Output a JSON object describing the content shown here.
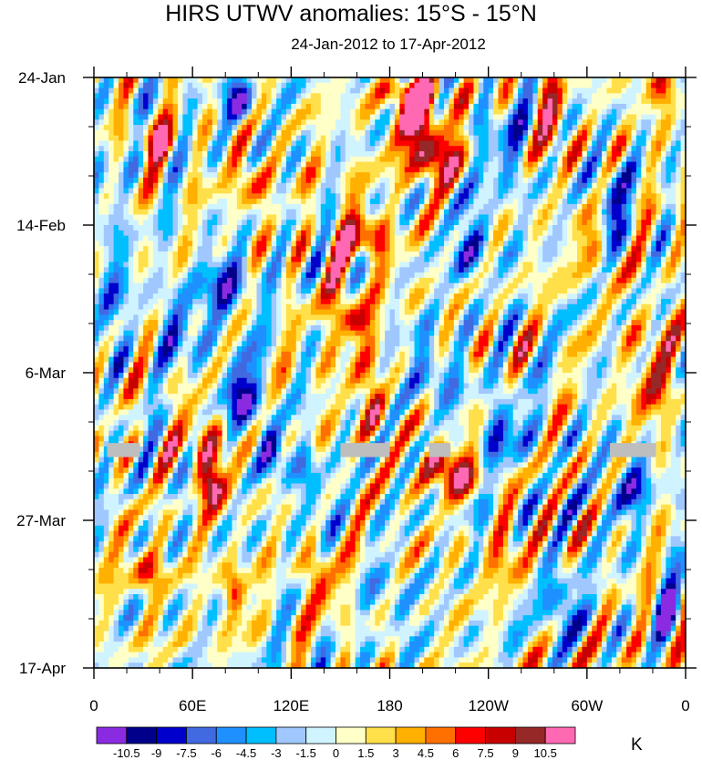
{
  "chart_data": {
    "type": "heatmap",
    "title": "HIRS UTWV anomalies: 15°S - 15°N",
    "subtitle": "24-Jan-2012 to 17-Apr-2012",
    "units": "K",
    "x_axis": {
      "range_lon_east": [
        0,
        360
      ],
      "ticks": [
        {
          "lon": 0,
          "label": "0"
        },
        {
          "lon": 60,
          "label": "60E"
        },
        {
          "lon": 120,
          "label": "120E"
        },
        {
          "lon": 180,
          "label": "180"
        },
        {
          "lon": 240,
          "label": "120W"
        },
        {
          "lon": 300,
          "label": "60W"
        },
        {
          "lon": 360,
          "label": "0"
        }
      ]
    },
    "y_axis": {
      "range_days_since_start": [
        0,
        84
      ],
      "ticks": [
        {
          "day": 0,
          "label": "24-Jan"
        },
        {
          "day": 21,
          "label": "14-Feb"
        },
        {
          "day": 42,
          "label": "6-Mar"
        },
        {
          "day": 63,
          "label": "27-Mar"
        },
        {
          "day": 84,
          "label": "17-Apr"
        }
      ]
    },
    "colorbar": {
      "levels": [
        -10.5,
        -9,
        -7.5,
        -6,
        -4.5,
        -3,
        -1.5,
        0,
        1.5,
        3,
        4.5,
        6,
        7.5,
        9,
        10.5
      ],
      "level_labels": [
        "-10.5",
        "-9",
        "-7.5",
        "-6",
        "-4.5",
        "-3",
        "-1.5",
        "0",
        "1.5",
        "3",
        "4.5",
        "6",
        "7.5",
        "9",
        "10.5"
      ],
      "colors": [
        "#8a2be2",
        "#00008b",
        "#0000cd",
        "#4169e1",
        "#1e90ff",
        "#00bfff",
        "#a0c8ff",
        "#d0f4ff",
        "#ffffc8",
        "#ffe04a",
        "#ffb000",
        "#ff7000",
        "#ff0000",
        "#c80000",
        "#962828",
        "#ff69b4"
      ]
    },
    "missing_color": "#bebebe",
    "missing_patches": [
      {
        "lon": [
          8,
          28
        ],
        "day": [
          52.0,
          54.0
        ]
      },
      {
        "lon": [
          150,
          180
        ],
        "day": [
          52.0,
          54.0
        ]
      },
      {
        "lon": [
          204,
          217
        ],
        "day": [
          52.0,
          54.0
        ]
      },
      {
        "lon": [
          314,
          342
        ],
        "day": [
          52.0,
          54.0
        ]
      }
    ],
    "features": [
      {
        "lon": 198,
        "day": 6,
        "value": 12,
        "width_deg": 22,
        "height_days": 8
      },
      {
        "lon": 205,
        "day": 11,
        "value": 9,
        "width_deg": 35,
        "height_days": 8
      },
      {
        "lon": 193,
        "day": 2,
        "value": 8,
        "width_deg": 45,
        "height_days": 4
      },
      {
        "lon": 212,
        "day": 55,
        "value": 11,
        "width_deg": 25,
        "height_days": 6
      },
      {
        "lon": 230,
        "day": 58,
        "value": 4,
        "width_deg": 30,
        "height_days": 5
      },
      {
        "lon": 72,
        "day": 58,
        "value": 10,
        "width_deg": 16,
        "height_days": 6
      },
      {
        "lon": 68,
        "day": 52,
        "value": 7,
        "width_deg": 22,
        "height_days": 10
      },
      {
        "lon": 168,
        "day": 23,
        "value": 9,
        "width_deg": 22,
        "height_days": 7
      },
      {
        "lon": 160,
        "day": 35,
        "value": 8,
        "width_deg": 18,
        "height_days": 5
      },
      {
        "lon": 170,
        "day": 46,
        "value": 8,
        "width_deg": 14,
        "height_days": 9
      },
      {
        "lon": 150,
        "day": 30,
        "value": 4,
        "width_deg": 25,
        "height_days": 25
      },
      {
        "lon": 85,
        "day": 73,
        "value": 8,
        "width_deg": 14,
        "height_days": 6
      },
      {
        "lon": 38,
        "day": 9,
        "value": 7,
        "width_deg": 22,
        "height_days": 6
      },
      {
        "lon": 280,
        "day": 7,
        "value": 7,
        "width_deg": 18,
        "height_days": 10
      },
      {
        "lon": 258,
        "day": 70,
        "value": 7,
        "width_deg": 28,
        "height_days": 6
      },
      {
        "lon": 350,
        "day": 3,
        "value": 6,
        "width_deg": 20,
        "height_days": 8
      },
      {
        "lon": 340,
        "day": 42,
        "value": 6,
        "width_deg": 25,
        "height_days": 16
      },
      {
        "lon": 138,
        "day": 72,
        "value": 7,
        "width_deg": 18,
        "height_days": 8
      },
      {
        "lon": 30,
        "day": 70,
        "value": 7,
        "width_deg": 22,
        "height_days": 6
      },
      {
        "lon": 305,
        "day": 24,
        "value": 5,
        "width_deg": 20,
        "height_days": 8
      },
      {
        "lon": 95,
        "day": 15,
        "value": 5,
        "width_deg": 20,
        "height_days": 10
      },
      {
        "lon": 90,
        "day": 4,
        "value": -10,
        "width_deg": 18,
        "height_days": 6
      },
      {
        "lon": 90,
        "day": 45,
        "value": -9,
        "width_deg": 25,
        "height_days": 10
      },
      {
        "lon": 108,
        "day": 53,
        "value": -8,
        "width_deg": 15,
        "height_days": 8
      },
      {
        "lon": 132,
        "day": 58,
        "value": -7,
        "width_deg": 16,
        "height_days": 10
      },
      {
        "lon": 80,
        "day": 30,
        "value": -7,
        "width_deg": 35,
        "height_days": 10
      },
      {
        "lon": 280,
        "day": 74,
        "value": -8,
        "width_deg": 30,
        "height_days": 8
      },
      {
        "lon": 350,
        "day": 76,
        "value": -9,
        "width_deg": 14,
        "height_days": 8
      },
      {
        "lon": 315,
        "day": 18,
        "value": -7,
        "width_deg": 20,
        "height_days": 12
      },
      {
        "lon": 230,
        "day": 24,
        "value": -6,
        "width_deg": 25,
        "height_days": 12
      },
      {
        "lon": 250,
        "day": 50,
        "value": -6,
        "width_deg": 30,
        "height_days": 10
      },
      {
        "lon": 10,
        "day": 28,
        "value": -5,
        "width_deg": 18,
        "height_days": 25
      },
      {
        "lon": 325,
        "day": 58,
        "value": -6,
        "width_deg": 30,
        "height_days": 10
      },
      {
        "lon": 205,
        "day": 42,
        "value": -6,
        "width_deg": 25,
        "height_days": 10
      },
      {
        "lon": 250,
        "day": 10,
        "value": -5,
        "width_deg": 28,
        "height_days": 14
      },
      {
        "lon": 185,
        "day": 75,
        "value": -5,
        "width_deg": 20,
        "height_days": 8
      },
      {
        "lon": 50,
        "day": 36,
        "value": -6,
        "width_deg": 24,
        "height_days": 10
      }
    ]
  }
}
